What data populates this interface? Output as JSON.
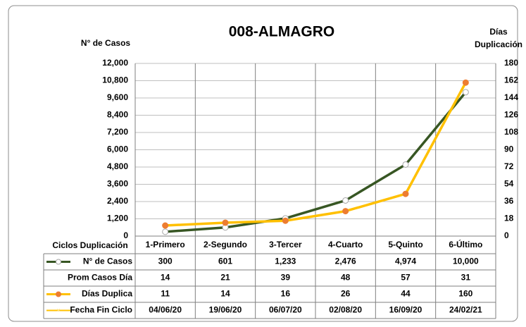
{
  "chart_data": {
    "type": "line",
    "title": "008-ALMAGRO",
    "y_label": "N° de Casos",
    "y2_label_lines": [
      "Días",
      "Duplicación"
    ],
    "table_header": "Ciclos Duplicación",
    "categories": [
      "1-Primero",
      "2-Segundo",
      "3-Tercer",
      "4-Cuarto",
      "5-Quinto",
      "6-Último"
    ],
    "series": [
      {
        "name": "N° de Casos",
        "color": "#375623",
        "marker_fill": "#ffffff",
        "marker_stroke": "#a6a6a6",
        "axis": "y",
        "values": [
          300,
          601,
          1233,
          2476,
          4974,
          10000
        ],
        "value_labels": [
          "300",
          "601",
          "1,233",
          "2,476",
          "4,974",
          "10,000"
        ]
      },
      {
        "name": "Días Duplica",
        "color": "#ffc000",
        "marker_fill": "#ed7d31",
        "marker_stroke": "#ed7d31",
        "axis": "y2",
        "values": [
          11,
          14,
          16,
          26,
          44,
          160
        ]
      }
    ],
    "table_rows": [
      {
        "name": "Prom Casos Día",
        "values": [
          14,
          21,
          39,
          48,
          57,
          31
        ]
      },
      {
        "name": "Fecha Fin Ciclo",
        "color": "#ffc000",
        "values": [
          "04/06/20",
          "19/06/20",
          "06/07/20",
          "02/08/20",
          "16/09/20",
          "24/02/21"
        ]
      }
    ],
    "ylim": [
      0,
      12000
    ],
    "yticks": [
      0,
      {
        "value": 1200,
        "label": "1,200"
      },
      {
        "value": 2400,
        "label": "2,400"
      },
      {
        "value": 3600,
        "label": "3,600"
      },
      {
        "value": 4800,
        "label": "4,800"
      },
      {
        "value": 6000,
        "label": "6,000"
      },
      {
        "value": 7200,
        "label": "7,200"
      },
      {
        "value": 8400,
        "label": "8,400"
      },
      {
        "value": 9600,
        "label": "9,600"
      },
      {
        "value": 10800,
        "label": "10,800"
      },
      {
        "value": 12000,
        "label": "12,000"
      }
    ],
    "y2lim": [
      0,
      180
    ],
    "y2ticks": [
      0,
      18,
      36,
      54,
      72,
      90,
      108,
      126,
      144,
      162,
      180
    ],
    "grid": true
  }
}
